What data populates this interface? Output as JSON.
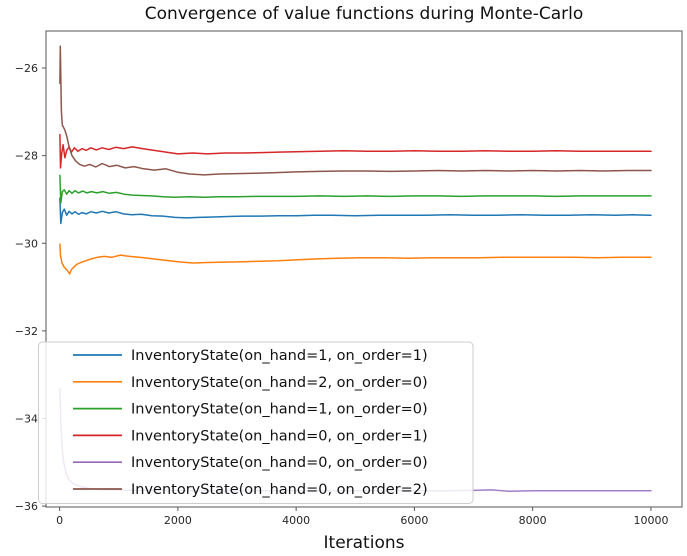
{
  "title": "Convergence of value functions during Monte-Carlo",
  "xlabel": "Iterations",
  "colors": {
    "blue": "#1f77b4",
    "orange": "#ff7f0e",
    "green": "#2ca02c",
    "red": "#d62728",
    "purple": "#9467bd",
    "brown": "#8c564b",
    "spine": "#565656",
    "tick_label": "#262626",
    "text": "#111111",
    "legend_border": "#cccccc",
    "legend_fill_rgba": "rgba(255,255,255,0.82)"
  },
  "chart_data": {
    "type": "line",
    "title": "Convergence of value functions during Monte-Carlo",
    "xlabel": "Iterations",
    "ylabel": "",
    "grid": false,
    "legend_position": "lower-left",
    "xlim": [
      -230,
      10525
    ],
    "ylim": [
      -36.02,
      -25.155
    ],
    "xticks": [
      0,
      2000,
      4000,
      6000,
      8000,
      10000
    ],
    "xtick_labels": [
      "0",
      "2000",
      "4000",
      "6000",
      "8000",
      "10000"
    ],
    "yticks": [
      -26,
      -28,
      -30,
      -32,
      -34,
      -36
    ],
    "ytick_labels": [
      "−26",
      "−28",
      "−30",
      "−32",
      "−34",
      "−36"
    ],
    "series": [
      {
        "name": "InventoryState(on_hand=1, on_order=1)",
        "color": "#1f77b4",
        "converged_value": -29.36,
        "points": [
          [
            5,
            -28.97
          ],
          [
            20,
            -29.55
          ],
          [
            45,
            -29.3
          ],
          [
            80,
            -29.22
          ],
          [
            120,
            -29.36
          ],
          [
            160,
            -29.27
          ],
          [
            210,
            -29.33
          ],
          [
            260,
            -29.28
          ],
          [
            320,
            -29.34
          ],
          [
            380,
            -29.3
          ],
          [
            450,
            -29.33
          ],
          [
            530,
            -29.28
          ],
          [
            620,
            -29.31
          ],
          [
            720,
            -29.27
          ],
          [
            830,
            -29.31
          ],
          [
            950,
            -29.28
          ],
          [
            1080,
            -29.33
          ],
          [
            1220,
            -29.35
          ],
          [
            1380,
            -29.34
          ],
          [
            1560,
            -29.37
          ],
          [
            1750,
            -29.38
          ],
          [
            1950,
            -29.41
          ],
          [
            2150,
            -29.42
          ],
          [
            2350,
            -29.41
          ],
          [
            2600,
            -29.4
          ],
          [
            2850,
            -29.39
          ],
          [
            3100,
            -29.38
          ],
          [
            3400,
            -29.38
          ],
          [
            3700,
            -29.37
          ],
          [
            4000,
            -29.37
          ],
          [
            4300,
            -29.36
          ],
          [
            4600,
            -29.36
          ],
          [
            5000,
            -29.37
          ],
          [
            5400,
            -29.36
          ],
          [
            5800,
            -29.36
          ],
          [
            6200,
            -29.36
          ],
          [
            6600,
            -29.35
          ],
          [
            7000,
            -29.36
          ],
          [
            7400,
            -29.36
          ],
          [
            7800,
            -29.35
          ],
          [
            8200,
            -29.36
          ],
          [
            8600,
            -29.36
          ],
          [
            9000,
            -29.35
          ],
          [
            9400,
            -29.36
          ],
          [
            9700,
            -29.35
          ],
          [
            10000,
            -29.36
          ]
        ]
      },
      {
        "name": "InventoryState(on_hand=2, on_order=0)",
        "color": "#ff7f0e",
        "converged_value": -30.32,
        "points": [
          [
            5,
            -30.02
          ],
          [
            15,
            -30.28
          ],
          [
            40,
            -30.45
          ],
          [
            80,
            -30.55
          ],
          [
            130,
            -30.62
          ],
          [
            170,
            -30.7
          ],
          [
            200,
            -30.6
          ],
          [
            230,
            -30.56
          ],
          [
            290,
            -30.48
          ],
          [
            360,
            -30.44
          ],
          [
            440,
            -30.4
          ],
          [
            530,
            -30.36
          ],
          [
            640,
            -30.32
          ],
          [
            760,
            -30.3
          ],
          [
            880,
            -30.32
          ],
          [
            1030,
            -30.27
          ],
          [
            1180,
            -30.3
          ],
          [
            1350,
            -30.32
          ],
          [
            1550,
            -30.35
          ],
          [
            1780,
            -30.39
          ],
          [
            2000,
            -30.42
          ],
          [
            2250,
            -30.45
          ],
          [
            2500,
            -30.44
          ],
          [
            2800,
            -30.43
          ],
          [
            3100,
            -30.42
          ],
          [
            3400,
            -30.41
          ],
          [
            3700,
            -30.4
          ],
          [
            4000,
            -30.38
          ],
          [
            4300,
            -30.36
          ],
          [
            4700,
            -30.34
          ],
          [
            5100,
            -30.33
          ],
          [
            5500,
            -30.33
          ],
          [
            5900,
            -30.34
          ],
          [
            6300,
            -30.33
          ],
          [
            6700,
            -30.33
          ],
          [
            7100,
            -30.33
          ],
          [
            7500,
            -30.32
          ],
          [
            7900,
            -30.32
          ],
          [
            8300,
            -30.32
          ],
          [
            8700,
            -30.32
          ],
          [
            9100,
            -30.33
          ],
          [
            9500,
            -30.32
          ],
          [
            10000,
            -30.32
          ]
        ]
      },
      {
        "name": "InventoryState(on_hand=1, on_order=0)",
        "color": "#2ca02c",
        "converged_value": -28.92,
        "points": [
          [
            5,
            -28.45
          ],
          [
            20,
            -29.08
          ],
          [
            45,
            -28.82
          ],
          [
            80,
            -28.78
          ],
          [
            120,
            -28.88
          ],
          [
            160,
            -28.8
          ],
          [
            210,
            -28.86
          ],
          [
            260,
            -28.8
          ],
          [
            320,
            -28.85
          ],
          [
            390,
            -28.81
          ],
          [
            460,
            -28.85
          ],
          [
            540,
            -28.82
          ],
          [
            630,
            -28.85
          ],
          [
            730,
            -28.82
          ],
          [
            840,
            -28.86
          ],
          [
            960,
            -28.84
          ],
          [
            1090,
            -28.88
          ],
          [
            1230,
            -28.9
          ],
          [
            1380,
            -28.91
          ],
          [
            1550,
            -28.92
          ],
          [
            1750,
            -28.94
          ],
          [
            1950,
            -28.95
          ],
          [
            2200,
            -28.94
          ],
          [
            2450,
            -28.95
          ],
          [
            2700,
            -28.94
          ],
          [
            3000,
            -28.94
          ],
          [
            3300,
            -28.93
          ],
          [
            3600,
            -28.93
          ],
          [
            4000,
            -28.93
          ],
          [
            4400,
            -28.92
          ],
          [
            4800,
            -28.93
          ],
          [
            5200,
            -28.92
          ],
          [
            5600,
            -28.93
          ],
          [
            6000,
            -28.92
          ],
          [
            6400,
            -28.92
          ],
          [
            6800,
            -28.93
          ],
          [
            7200,
            -28.92
          ],
          [
            7600,
            -28.92
          ],
          [
            8000,
            -28.92
          ],
          [
            8400,
            -28.93
          ],
          [
            8800,
            -28.92
          ],
          [
            9200,
            -28.92
          ],
          [
            9600,
            -28.92
          ],
          [
            10000,
            -28.92
          ]
        ]
      },
      {
        "name": "InventoryState(on_hand=0, on_order=1)",
        "color": "#d62728",
        "converged_value": -27.9,
        "points": [
          [
            5,
            -27.52
          ],
          [
            15,
            -28.28
          ],
          [
            35,
            -27.95
          ],
          [
            60,
            -27.75
          ],
          [
            90,
            -28.05
          ],
          [
            120,
            -27.88
          ],
          [
            160,
            -27.8
          ],
          [
            200,
            -27.92
          ],
          [
            250,
            -27.82
          ],
          [
            310,
            -27.9
          ],
          [
            380,
            -27.84
          ],
          [
            450,
            -27.88
          ],
          [
            530,
            -27.82
          ],
          [
            620,
            -27.87
          ],
          [
            720,
            -27.82
          ],
          [
            830,
            -27.86
          ],
          [
            950,
            -27.81
          ],
          [
            1080,
            -27.84
          ],
          [
            1230,
            -27.8
          ],
          [
            1400,
            -27.84
          ],
          [
            1600,
            -27.88
          ],
          [
            1800,
            -27.92
          ],
          [
            2000,
            -27.96
          ],
          [
            2250,
            -27.94
          ],
          [
            2500,
            -27.96
          ],
          [
            2800,
            -27.94
          ],
          [
            3100,
            -27.94
          ],
          [
            3400,
            -27.93
          ],
          [
            3700,
            -27.92
          ],
          [
            4000,
            -27.91
          ],
          [
            4400,
            -27.9
          ],
          [
            4800,
            -27.89
          ],
          [
            5200,
            -27.9
          ],
          [
            5600,
            -27.9
          ],
          [
            6000,
            -27.89
          ],
          [
            6400,
            -27.9
          ],
          [
            6800,
            -27.9
          ],
          [
            7200,
            -27.89
          ],
          [
            7600,
            -27.9
          ],
          [
            8000,
            -27.9
          ],
          [
            8400,
            -27.89
          ],
          [
            8800,
            -27.9
          ],
          [
            9200,
            -27.9
          ],
          [
            9600,
            -27.9
          ],
          [
            10000,
            -27.9
          ]
        ]
      },
      {
        "name": "InventoryState(on_hand=0, on_order=0)",
        "color": "#9467bd",
        "converged_value": -35.65,
        "points": [
          [
            5,
            -33.32
          ],
          [
            20,
            -34.1
          ],
          [
            40,
            -34.65
          ],
          [
            70,
            -35.0
          ],
          [
            110,
            -35.25
          ],
          [
            160,
            -35.4
          ],
          [
            220,
            -35.48
          ],
          [
            300,
            -35.53
          ],
          [
            400,
            -35.57
          ],
          [
            520,
            -35.6
          ],
          [
            660,
            -35.62
          ],
          [
            820,
            -35.63
          ],
          [
            1000,
            -35.63
          ],
          [
            1250,
            -35.64
          ],
          [
            1500,
            -35.64
          ],
          [
            1800,
            -35.64
          ],
          [
            2100,
            -35.65
          ],
          [
            2500,
            -35.65
          ],
          [
            3000,
            -35.65
          ],
          [
            3500,
            -35.65
          ],
          [
            4000,
            -35.65
          ],
          [
            4500,
            -35.65
          ],
          [
            5000,
            -35.65
          ],
          [
            5500,
            -35.64
          ],
          [
            6000,
            -35.65
          ],
          [
            6500,
            -35.65
          ],
          [
            7000,
            -35.64
          ],
          [
            7300,
            -35.63
          ],
          [
            7600,
            -35.66
          ],
          [
            8000,
            -35.65
          ],
          [
            8500,
            -35.65
          ],
          [
            9000,
            -35.65
          ],
          [
            9500,
            -35.65
          ],
          [
            10000,
            -35.65
          ]
        ]
      },
      {
        "name": "InventoryState(on_hand=0, on_order=2)",
        "color": "#8c564b",
        "converged_value": -28.34,
        "points": [
          [
            5,
            -26.35
          ],
          [
            12,
            -25.5
          ],
          [
            20,
            -26.2
          ],
          [
            30,
            -27.0
          ],
          [
            45,
            -27.3
          ],
          [
            65,
            -27.35
          ],
          [
            90,
            -27.42
          ],
          [
            120,
            -27.55
          ],
          [
            160,
            -27.8
          ],
          [
            210,
            -28.0
          ],
          [
            270,
            -28.12
          ],
          [
            340,
            -28.2
          ],
          [
            420,
            -28.24
          ],
          [
            510,
            -28.2
          ],
          [
            610,
            -28.26
          ],
          [
            720,
            -28.18
          ],
          [
            840,
            -28.25
          ],
          [
            970,
            -28.22
          ],
          [
            1110,
            -28.28
          ],
          [
            1260,
            -28.25
          ],
          [
            1420,
            -28.3
          ],
          [
            1600,
            -28.33
          ],
          [
            1800,
            -28.3
          ],
          [
            2000,
            -28.38
          ],
          [
            2200,
            -28.42
          ],
          [
            2450,
            -28.44
          ],
          [
            2700,
            -28.42
          ],
          [
            3000,
            -28.41
          ],
          [
            3300,
            -28.4
          ],
          [
            3600,
            -28.39
          ],
          [
            4000,
            -28.37
          ],
          [
            4400,
            -28.36
          ],
          [
            4800,
            -28.35
          ],
          [
            5200,
            -28.35
          ],
          [
            5600,
            -28.36
          ],
          [
            6000,
            -28.35
          ],
          [
            6400,
            -28.34
          ],
          [
            6800,
            -28.35
          ],
          [
            7200,
            -28.34
          ],
          [
            7600,
            -28.35
          ],
          [
            8000,
            -28.34
          ],
          [
            8400,
            -28.35
          ],
          [
            8800,
            -28.34
          ],
          [
            9200,
            -28.35
          ],
          [
            9600,
            -28.34
          ],
          [
            10000,
            -28.34
          ]
        ]
      }
    ]
  }
}
